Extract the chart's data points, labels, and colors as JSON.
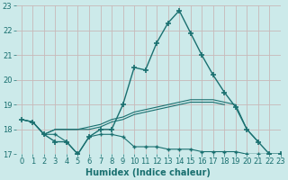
{
  "xlabel": "Humidex (Indice chaleur)",
  "x_values": [
    0,
    1,
    2,
    3,
    4,
    5,
    6,
    7,
    8,
    9,
    10,
    11,
    12,
    13,
    14,
    15,
    16,
    17,
    18,
    19,
    20,
    21,
    22,
    23
  ],
  "line_main": [
    18.4,
    18.3,
    17.8,
    17.5,
    17.5,
    17.0,
    17.7,
    18.0,
    18.0,
    19.0,
    20.5,
    20.4,
    21.5,
    22.3,
    22.8,
    21.9,
    21.0,
    20.2,
    19.5,
    18.9,
    18.0,
    17.5,
    17.0,
    17.0
  ],
  "line_flat_low": [
    null,
    null,
    17.8,
    17.8,
    17.5,
    17.0,
    17.7,
    17.8,
    17.8,
    17.7,
    17.3,
    17.3,
    17.3,
    17.2,
    17.2,
    17.2,
    17.1,
    17.1,
    17.1,
    17.1,
    17.0,
    17.0,
    17.0,
    17.0
  ],
  "line_rising1": [
    18.4,
    18.3,
    17.8,
    18.0,
    18.0,
    18.0,
    18.0,
    18.1,
    18.3,
    18.4,
    18.6,
    18.7,
    18.8,
    18.9,
    19.0,
    19.1,
    19.1,
    19.1,
    19.0,
    null,
    null,
    null,
    null,
    null
  ],
  "line_rising2": [
    18.4,
    18.3,
    17.8,
    18.0,
    18.0,
    18.0,
    18.1,
    18.2,
    18.4,
    18.5,
    18.7,
    18.8,
    18.9,
    19.0,
    19.1,
    19.2,
    19.2,
    19.2,
    19.1,
    19.0,
    18.0,
    17.5,
    null,
    null
  ],
  "bg_color": "#cceaea",
  "grid_color": "#c8b8b8",
  "line_color": "#1a7070",
  "ylim": [
    17,
    23
  ],
  "xlim": [
    -0.5,
    23
  ],
  "yticks": [
    17,
    18,
    19,
    20,
    21,
    22,
    23
  ],
  "xticks": [
    0,
    1,
    2,
    3,
    4,
    5,
    6,
    7,
    8,
    9,
    10,
    11,
    12,
    13,
    14,
    15,
    16,
    17,
    18,
    19,
    20,
    21,
    22,
    23
  ],
  "xlabel_fontsize": 7,
  "tick_fontsize": 6
}
